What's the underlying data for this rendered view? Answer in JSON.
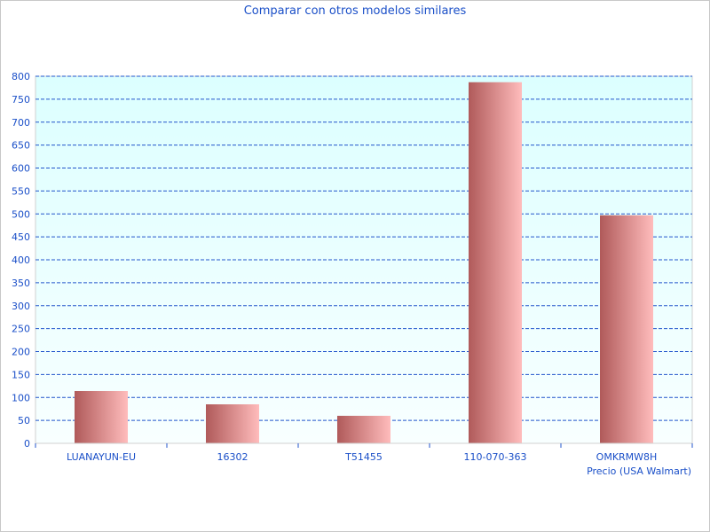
{
  "chart_data": {
    "type": "bar",
    "title": "Comparar con otros modelos similares",
    "xlabel": "Precio (USA Walmart)",
    "ylabel": "",
    "categories": [
      "LUANAYUN-EU",
      "16302",
      "T51455",
      "110-070-363",
      "OMKRMW8H"
    ],
    "values": [
      114,
      85,
      60,
      787,
      497
    ],
    "ylim": [
      0,
      800
    ],
    "yticks": [
      0,
      50,
      100,
      150,
      200,
      250,
      300,
      350,
      400,
      450,
      500,
      550,
      600,
      650,
      700,
      750,
      800
    ],
    "grid": true,
    "legend": "none",
    "colors": {
      "bar_dark": "#b05a5a",
      "bar_light": "#ffbcbc",
      "grid": "#2255cc",
      "text": "#1a4fc8",
      "plot_bg_top": "#dcffff",
      "plot_bg_bottom": "#f8ffff"
    }
  }
}
